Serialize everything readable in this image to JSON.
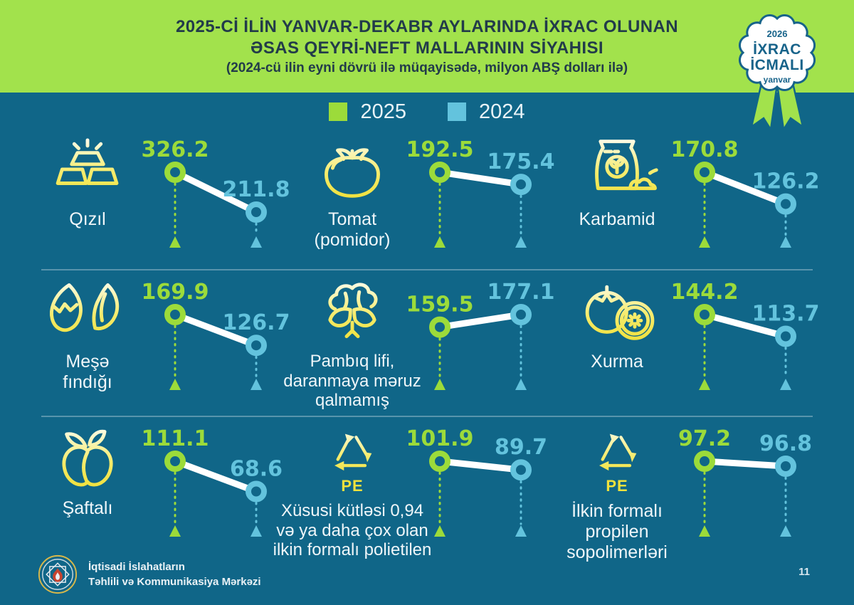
{
  "header": {
    "title_line1": "2025-Cİ İLİN YANVAR-DEKABR AYLARINDA İXRAC OLUNAN",
    "title_line2": "ƏSAS QEYRİ-NEFT MALLARININ SİYAHISI",
    "subtitle": "(2024-cü ilin eyni dövrü ilə müqayisədə, milyon ABŞ dolları ilə)",
    "badge": {
      "year": "2026",
      "line1": "İXRAC",
      "line2": "İCMALI",
      "month": "yanvar"
    }
  },
  "legend": {
    "items": [
      {
        "label": "2025",
        "color": "#9CDB3A"
      },
      {
        "label": "2024",
        "color": "#63C3DD"
      }
    ]
  },
  "chart_data": {
    "type": "slope",
    "title": "2025-ci ilin yanvar-dekabr aylarında ixrac olunan əsas qeyri-neft mallarının siyahısı",
    "unit": "milyon ABŞ dolları",
    "years": [
      "2025",
      "2024"
    ],
    "items": [
      {
        "name": "Qızıl",
        "label": "Qızıl",
        "icon": "gold-bars",
        "y2025": 326.2,
        "y2024": 211.8
      },
      {
        "name": "Tomat (pomidor)",
        "label": [
          "Tomat",
          "(pomidor)"
        ],
        "icon": "tomato",
        "y2025": 192.5,
        "y2024": 175.4
      },
      {
        "name": "Karbamid",
        "label": "Karbamid",
        "icon": "fertilizer-bag",
        "y2025": 170.8,
        "y2024": 126.2
      },
      {
        "name": "Meşə fındığı",
        "label": [
          "Meşə",
          "fındığı"
        ],
        "icon": "hazelnut",
        "y2025": 169.9,
        "y2024": 126.7
      },
      {
        "name": "Pambıq lifi, daranmaya məruz qalmamış",
        "label": [
          "Pambıq lifi,",
          "daranmaya məruz",
          "qalmamış"
        ],
        "icon": "cotton",
        "y2025": 159.5,
        "y2024": 177.1
      },
      {
        "name": "Xurma",
        "label": "Xurma",
        "icon": "persimmon",
        "y2025": 144.2,
        "y2024": 113.7
      },
      {
        "name": "Şaftalı",
        "label": "Şaftalı",
        "icon": "peach",
        "y2025": 111.1,
        "y2024": 68.6
      },
      {
        "name": "Xüsusi kütləsi 0,94 və ya daha çox olan ilkin formalı polietilen",
        "label": [
          "Xüsusi kütləsi 0,94",
          "və ya daha çox olan",
          "ilkin formalı polietilen"
        ],
        "icon": "recycling-pe",
        "icon_caption": "PE",
        "y2025": 101.9,
        "y2024": 89.7
      },
      {
        "name": "İlkin formalı propilen sopolimerləri",
        "label": [
          "İlkin formalı",
          "propilen",
          "sopolimerləri"
        ],
        "icon": "recycling-pe",
        "icon_caption": "PE",
        "y2025": 97.2,
        "y2024": 96.8
      }
    ]
  },
  "footer": {
    "org_line1": "İqtisadi İslahatların",
    "org_line2": "Təhlili və Kommunikasiya Mərkəzi",
    "page_number": "11"
  },
  "colors": {
    "background": "#106688",
    "header_bg": "#A2E24C",
    "title_text": "#223B4A",
    "accent_2025": "#9CDB3A",
    "accent_2024": "#63C3DD",
    "icon_yellow": "#F0E23C",
    "connector": "#FFFFFF"
  }
}
